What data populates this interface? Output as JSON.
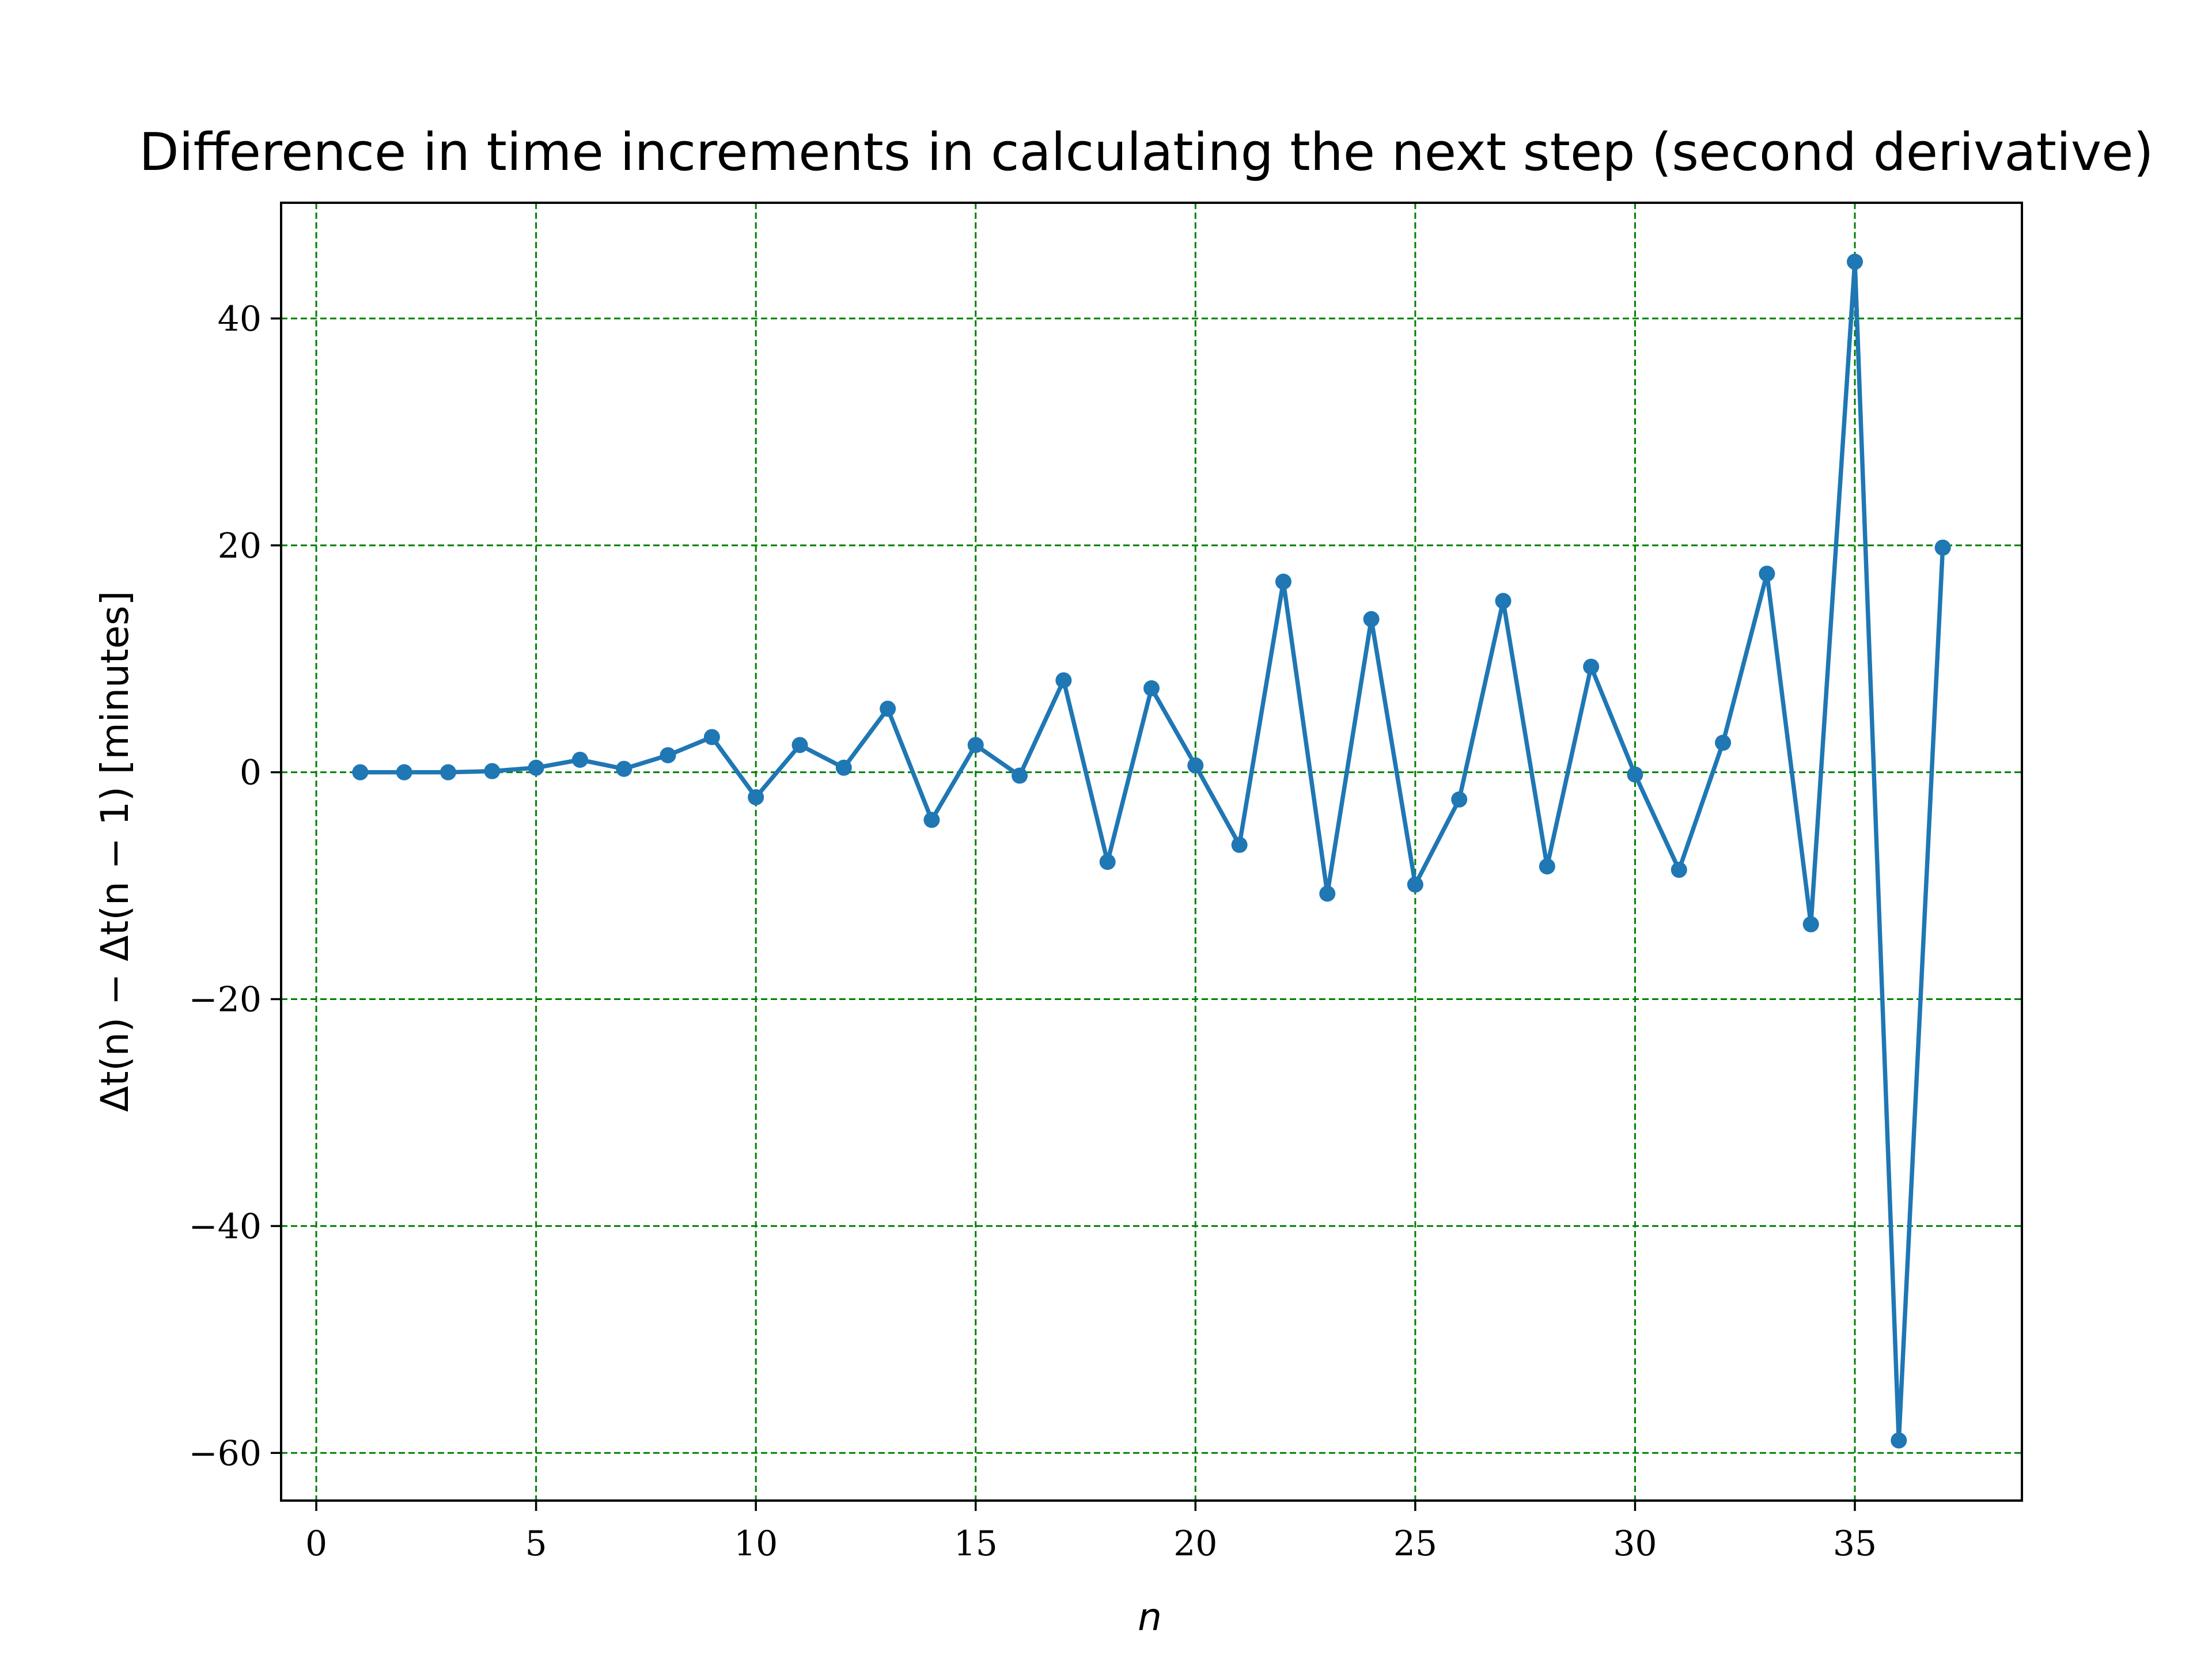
{
  "chart_data": {
    "type": "line",
    "title": "Difference in time increments in calculating the next step (second derivative)",
    "xlabel": "n",
    "ylabel": "Δt(n) − Δt(n − 1) [minutes]",
    "xlim": [
      -0.8,
      38.8
    ],
    "ylim": [
      -64.2,
      50.2
    ],
    "xticks": [
      0,
      5,
      10,
      15,
      20,
      25,
      30,
      35
    ],
    "yticks": [
      -60,
      -40,
      -20,
      0,
      20,
      40
    ],
    "xtick_labels": [
      "0",
      "5",
      "10",
      "15",
      "20",
      "25",
      "30",
      "35"
    ],
    "ytick_labels": [
      "−60",
      "−40",
      "−20",
      "0",
      "20",
      "40"
    ],
    "grid": true,
    "grid_color": "#008000",
    "series": [
      {
        "color": "#1f77b4",
        "x": [
          1,
          2,
          3,
          4,
          5,
          6,
          7,
          8,
          9,
          10,
          11,
          12,
          13,
          14,
          15,
          16,
          17,
          18,
          19,
          20,
          21,
          22,
          23,
          24,
          25,
          26,
          27,
          28,
          29,
          30,
          31,
          32,
          33,
          34,
          35,
          36,
          37
        ],
        "y": [
          0.0,
          0.0,
          0.0,
          0.1,
          0.4,
          1.1,
          0.3,
          1.5,
          3.1,
          -2.2,
          2.4,
          0.4,
          5.6,
          -4.2,
          2.4,
          -0.3,
          8.1,
          -7.9,
          7.4,
          0.6,
          -6.4,
          16.8,
          -10.7,
          13.5,
          -9.9,
          -2.4,
          15.1,
          -8.3,
          9.3,
          -0.2,
          -8.6,
          2.6,
          17.5,
          -13.4,
          45.0,
          -58.9,
          19.8
        ]
      }
    ]
  }
}
